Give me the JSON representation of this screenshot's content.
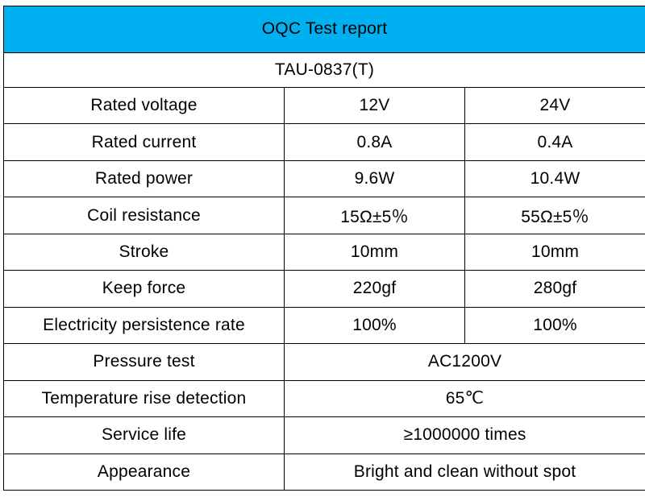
{
  "header": {
    "title": "OQC Test report"
  },
  "colors": {
    "header_bg": "#00b0f0",
    "border": "#000000",
    "text": "#000000"
  },
  "model": {
    "value": "TAU-0837(T)"
  },
  "table": {
    "two_col_rows": [
      {
        "label": "Rated voltage",
        "col1": "12V",
        "col2": "24V"
      },
      {
        "label": "Rated current",
        "col1": "0.8A",
        "col2": "0.4A"
      },
      {
        "label": "Rated power",
        "col1": "9.6W",
        "col2": "10.4W"
      },
      {
        "label": "Coil resistance",
        "col1": "15Ω±5％",
        "col2": "55Ω±5％"
      },
      {
        "label": "Stroke",
        "col1": "10mm",
        "col2": "10mm"
      },
      {
        "label": "Keep force",
        "col1": "220gf",
        "col2": "280gf"
      },
      {
        "label": "Electricity persistence rate",
        "col1": "100%",
        "col2": "100%"
      }
    ],
    "span_rows": [
      {
        "label": "Pressure test",
        "value": "AC1200V"
      },
      {
        "label": "Temperature rise detection",
        "value": "65℃"
      },
      {
        "label": "Service life",
        "value": "≥1000000 times"
      },
      {
        "label": "Appearance",
        "value": "Bright and clean without spot"
      }
    ]
  }
}
